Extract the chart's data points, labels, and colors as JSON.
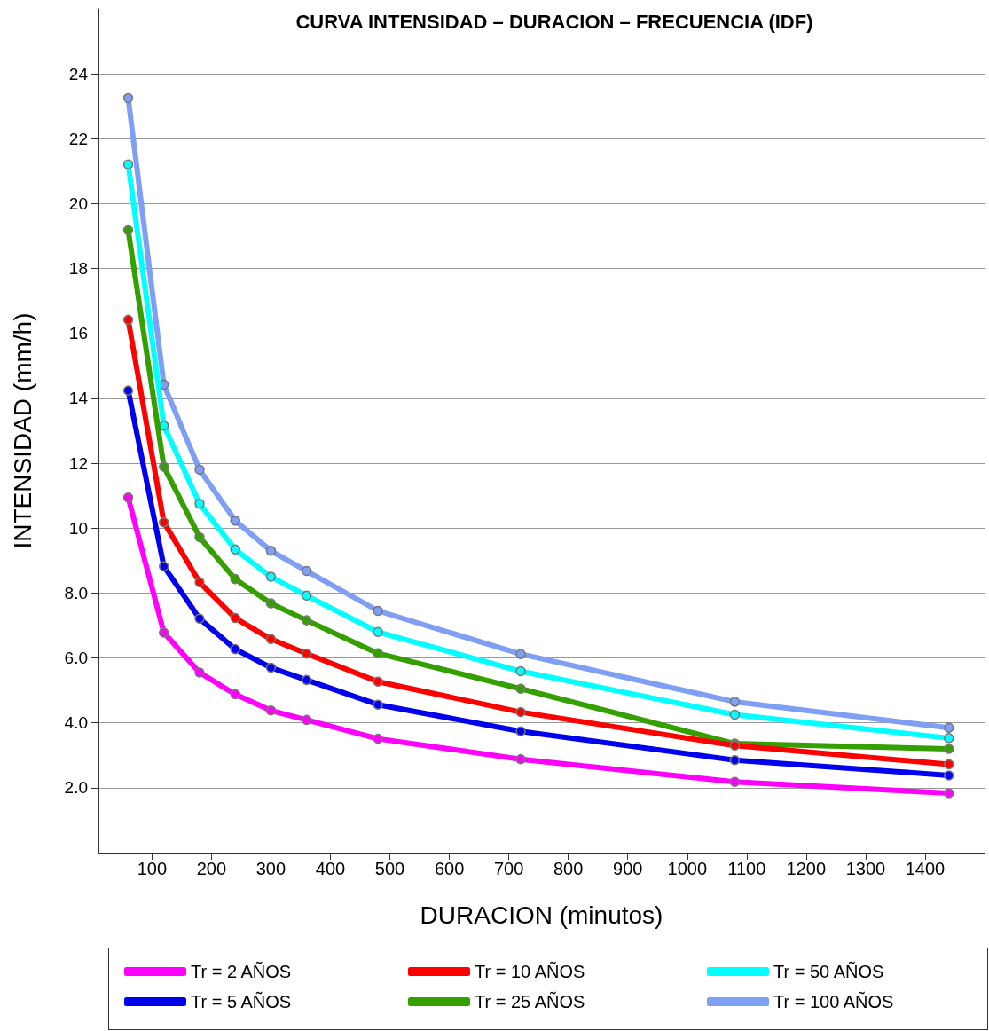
{
  "chart_data": {
    "type": "line",
    "title": "CURVA INTENSIDAD – DURACION – FRECUENCIA (IDF)",
    "xlabel": "DURACION (minutos)",
    "ylabel": "INTENSIDAD (mm/h)",
    "x": [
      60,
      120,
      180,
      240,
      300,
      360,
      480,
      720,
      1080,
      1440
    ],
    "series": [
      {
        "name": "Tr = 2 AÑOS",
        "color": "#ff00ff",
        "values": [
          10.94,
          6.78,
          5.55,
          4.88,
          4.38,
          4.09,
          3.51,
          2.88,
          2.18,
          1.83
        ]
      },
      {
        "name": "Tr = 5 AÑOS",
        "color": "#0000ee",
        "values": [
          14.24,
          8.82,
          7.21,
          6.27,
          5.7,
          5.32,
          4.56,
          3.74,
          2.85,
          2.38
        ]
      },
      {
        "name": "Tr = 10 AÑOS",
        "color": "#ff0000",
        "values": [
          16.42,
          10.18,
          8.33,
          7.23,
          6.58,
          6.13,
          5.27,
          4.33,
          3.3,
          2.72
        ]
      },
      {
        "name": "Tr = 25 AÑOS",
        "color": "#33a000",
        "values": [
          19.18,
          11.89,
          9.72,
          8.43,
          7.68,
          7.16,
          6.14,
          5.05,
          3.36,
          3.2
        ]
      },
      {
        "name": "Tr = 50 AÑOS",
        "color": "#00ffff",
        "values": [
          21.21,
          13.16,
          10.75,
          9.34,
          8.5,
          7.92,
          6.8,
          5.59,
          4.25,
          3.53
        ]
      },
      {
        "name": "Tr = 100 AÑOS",
        "color": "#7f9ff5",
        "values": [
          23.25,
          14.42,
          11.8,
          10.23,
          9.3,
          8.68,
          7.45,
          6.12,
          4.65,
          3.85
        ]
      }
    ],
    "xlim": [
      10,
      1500
    ],
    "xticks": [
      100,
      200,
      300,
      400,
      500,
      600,
      700,
      800,
      900,
      1000,
      1100,
      1200,
      1300,
      1400
    ],
    "ylim": [
      0,
      26
    ],
    "yticks": [
      {
        "value": 2,
        "label": "2.0"
      },
      {
        "value": 4,
        "label": "4.0"
      },
      {
        "value": 6,
        "label": "6.0"
      },
      {
        "value": 8,
        "label": "8.0"
      },
      10,
      12,
      14,
      16,
      18,
      20,
      22,
      24
    ],
    "grid": "y",
    "legend": "bottom",
    "marker": "circle",
    "line_style": "solid"
  }
}
